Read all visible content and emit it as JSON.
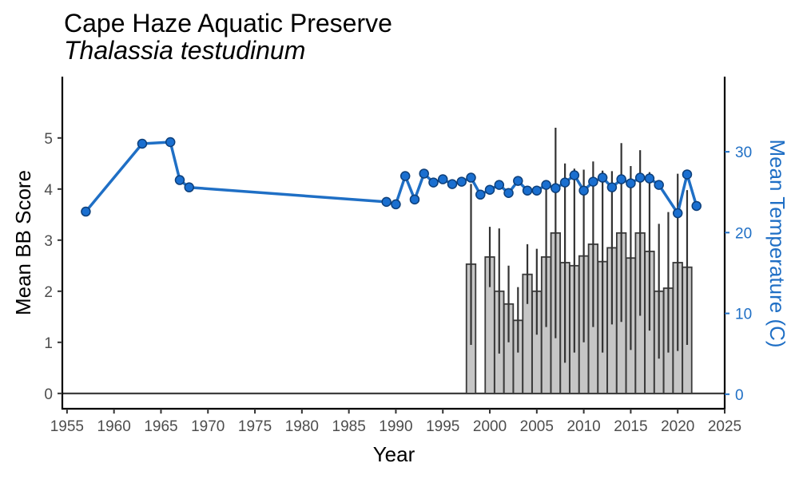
{
  "chart_data": {
    "type": "bar",
    "title": "Cape Haze Aquatic Preserve",
    "subtitle": "Thalassia testudinum",
    "xlabel": "Year",
    "ylabel": "Mean BB Score",
    "y2label": "Mean Temperature (C)",
    "xlim": [
      1954.5,
      2025
    ],
    "ylim": [
      -0.3,
      6.2
    ],
    "y2lim": [
      -1.8,
      39.3
    ],
    "x_ticks": [
      1955,
      1960,
      1965,
      1970,
      1975,
      1980,
      1985,
      1990,
      1995,
      2000,
      2005,
      2010,
      2015,
      2020,
      2025
    ],
    "y_ticks": [
      0,
      1,
      2,
      3,
      4,
      5
    ],
    "y2_ticks": [
      0,
      10,
      20,
      30
    ],
    "colors": {
      "bar_fill": "#c6c6c6",
      "bar_stroke": "#3a3a3a",
      "line": "#1f6fc5",
      "point_fill": "#1a6fd0",
      "point_stroke": "#0d3f7a",
      "axis": "#000000",
      "temp_axis": "#1f6fc5"
    },
    "bb_series": {
      "name": "Mean BB Score",
      "points": [
        {
          "year": 1998,
          "mean": 2.53,
          "low": 0.95,
          "high": 4.1
        },
        {
          "year": 2000,
          "mean": 2.67,
          "low": 2.08,
          "high": 3.26
        },
        {
          "year": 2001,
          "mean": 2.0,
          "low": 0.78,
          "high": 3.23
        },
        {
          "year": 2002,
          "mean": 1.75,
          "low": 1.0,
          "high": 2.5
        },
        {
          "year": 2003,
          "mean": 1.43,
          "low": 0.8,
          "high": 2.08
        },
        {
          "year": 2004,
          "mean": 2.33,
          "low": 1.75,
          "high": 2.92
        },
        {
          "year": 2005,
          "mean": 2.0,
          "low": 1.15,
          "high": 2.83
        },
        {
          "year": 2006,
          "mean": 2.67,
          "low": 1.3,
          "high": 4.05
        },
        {
          "year": 2007,
          "mean": 3.14,
          "low": 1.08,
          "high": 5.2
        },
        {
          "year": 2008,
          "mean": 2.56,
          "low": 0.6,
          "high": 4.5
        },
        {
          "year": 2009,
          "mean": 2.5,
          "low": 0.8,
          "high": 4.4
        },
        {
          "year": 2010,
          "mean": 2.69,
          "low": 1.0,
          "high": 4.38
        },
        {
          "year": 2011,
          "mean": 2.92,
          "low": 1.3,
          "high": 4.54
        },
        {
          "year": 2012,
          "mean": 2.58,
          "low": 0.8,
          "high": 4.36
        },
        {
          "year": 2013,
          "mean": 2.85,
          "low": 1.35,
          "high": 4.35
        },
        {
          "year": 2014,
          "mean": 3.14,
          "low": 1.4,
          "high": 4.9
        },
        {
          "year": 2015,
          "mean": 2.65,
          "low": 0.85,
          "high": 4.45
        },
        {
          "year": 2016,
          "mean": 3.14,
          "low": 1.52,
          "high": 4.76
        },
        {
          "year": 2017,
          "mean": 2.78,
          "low": 1.23,
          "high": 4.33
        },
        {
          "year": 2018,
          "mean": 2.0,
          "low": 0.68,
          "high": 3.32
        },
        {
          "year": 2019,
          "mean": 2.06,
          "low": 0.8,
          "high": 3.55
        },
        {
          "year": 2020,
          "mean": 2.56,
          "low": 0.83,
          "high": 4.3
        },
        {
          "year": 2021,
          "mean": 2.47,
          "low": 0.95,
          "high": 3.98
        }
      ]
    },
    "temp_series": {
      "name": "Mean Temperature (C)",
      "points": [
        {
          "year": 1957,
          "temp": 22.6
        },
        {
          "year": 1963,
          "temp": 31.0
        },
        {
          "year": 1966,
          "temp": 31.2
        },
        {
          "year": 1967,
          "temp": 26.5
        },
        {
          "year": 1968,
          "temp": 25.6
        },
        {
          "year": 1989,
          "temp": 23.8
        },
        {
          "year": 1990,
          "temp": 23.5
        },
        {
          "year": 1991,
          "temp": 27.0
        },
        {
          "year": 1992,
          "temp": 24.1
        },
        {
          "year": 1993,
          "temp": 27.3
        },
        {
          "year": 1994,
          "temp": 26.2
        },
        {
          "year": 1995,
          "temp": 26.6
        },
        {
          "year": 1996,
          "temp": 26.0
        },
        {
          "year": 1997,
          "temp": 26.3
        },
        {
          "year": 1998,
          "temp": 26.8
        },
        {
          "year": 1999,
          "temp": 24.7
        },
        {
          "year": 2000,
          "temp": 25.3
        },
        {
          "year": 2001,
          "temp": 25.9
        },
        {
          "year": 2002,
          "temp": 24.9
        },
        {
          "year": 2003,
          "temp": 26.4
        },
        {
          "year": 2004,
          "temp": 25.2
        },
        {
          "year": 2005,
          "temp": 25.2
        },
        {
          "year": 2006,
          "temp": 25.9
        },
        {
          "year": 2007,
          "temp": 25.5
        },
        {
          "year": 2008,
          "temp": 26.2
        },
        {
          "year": 2009,
          "temp": 27.1
        },
        {
          "year": 2010,
          "temp": 25.2
        },
        {
          "year": 2011,
          "temp": 26.3
        },
        {
          "year": 2012,
          "temp": 26.8
        },
        {
          "year": 2013,
          "temp": 25.6
        },
        {
          "year": 2014,
          "temp": 26.6
        },
        {
          "year": 2015,
          "temp": 26.1
        },
        {
          "year": 2016,
          "temp": 26.8
        },
        {
          "year": 2017,
          "temp": 26.7
        },
        {
          "year": 2018,
          "temp": 25.9
        },
        {
          "year": 2020,
          "temp": 22.4
        },
        {
          "year": 2021,
          "temp": 27.2
        },
        {
          "year": 2022,
          "temp": 23.3
        }
      ]
    }
  }
}
